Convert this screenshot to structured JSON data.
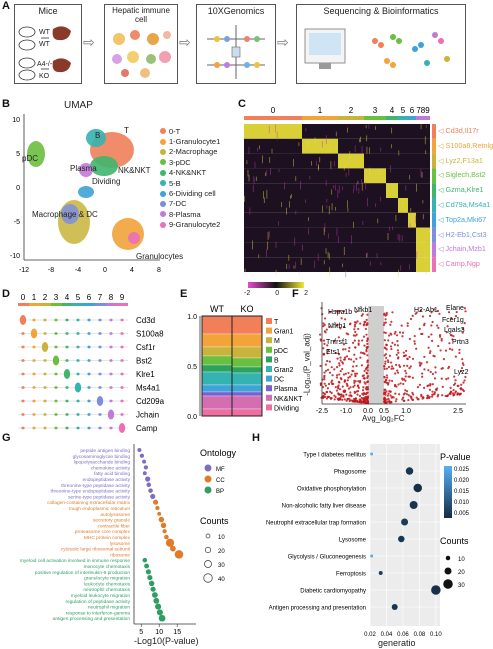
{
  "panels": {
    "A": "A",
    "B": "B",
    "C": "C",
    "D": "D",
    "E": "E",
    "F": "F",
    "G": "G",
    "H": "H"
  },
  "workflow": {
    "steps": [
      {
        "title": "Mice",
        "labels": [
          "WT",
          "WT",
          "A4-/-",
          "KO"
        ]
      },
      {
        "title": "Hepatic immune cell"
      },
      {
        "title": "10XGenomics"
      },
      {
        "title": "Sequencing & Bioinformatics"
      }
    ]
  },
  "umap": {
    "title": "UMAP",
    "cluster_labels": {
      "B": "B",
      "T": "T",
      "pDC": "pDC",
      "Plasma": "Plasma",
      "NKNKT": "NK&NKT",
      "Dividing": "Dividing",
      "MacDC": "Macrophage & DC",
      "Gran": "Granulocytes"
    },
    "x_ticks": [
      "-12",
      "-8",
      "-4",
      "0",
      "4",
      "8"
    ],
    "y_ticks": [
      "10",
      "5",
      "0",
      "-5",
      "-10"
    ],
    "legend": [
      {
        "label": "0-T",
        "color": "#f07f5a"
      },
      {
        "label": "1-Granulocyte1",
        "color": "#f2a33a"
      },
      {
        "label": "2-Macrophage",
        "color": "#c8b43a"
      },
      {
        "label": "3-pDC",
        "color": "#6bbf3f"
      },
      {
        "label": "4-NK&NKT",
        "color": "#3fb56e"
      },
      {
        "label": "5-B",
        "color": "#35b3b0"
      },
      {
        "label": "6-Dividing cell",
        "color": "#3ea3d8"
      },
      {
        "label": "7-DC",
        "color": "#7b8ee0"
      },
      {
        "label": "8-Plasma",
        "color": "#c17ad9"
      },
      {
        "label": "9-Granulocyte2",
        "color": "#ec6fb8"
      }
    ]
  },
  "heatmap": {
    "clusters": [
      "0",
      "1",
      "2",
      "3",
      "4",
      "5",
      "6",
      "789"
    ],
    "cluster_colors": [
      "#f07f5a",
      "#f2a33a",
      "#c8b43a",
      "#6bbf3f",
      "#3fb56e",
      "#35b3b0",
      "#3ea3d8",
      "#c17ad9"
    ],
    "genes": [
      {
        "label": "Cd3d,Il17r",
        "color": "#f07f5a"
      },
      {
        "label": "S100a8,Retnlg",
        "color": "#f2a33a"
      },
      {
        "label": "Lyz2,F13a1",
        "color": "#c8b43a"
      },
      {
        "label": "Siglech,Bst2",
        "color": "#6bbf3f"
      },
      {
        "label": "Gzma,Klre1",
        "color": "#3fb56e"
      },
      {
        "label": "Cd79a,Ms4a1",
        "color": "#35b3b0"
      },
      {
        "label": "Top2a,Mki67",
        "color": "#3ea3d8"
      },
      {
        "label": "H2-Eb1,Cst3",
        "color": "#7b8ee0"
      },
      {
        "label": "Jchain,Mzb1",
        "color": "#c17ad9"
      },
      {
        "label": "Camp,Ngp",
        "color": "#ec6fb8"
      }
    ],
    "scale": [
      "-2",
      "0",
      "2"
    ]
  },
  "violin": {
    "clusters": [
      "0",
      "1",
      "2",
      "3",
      "4",
      "5",
      "6",
      "7",
      "8",
      "9"
    ],
    "genes": [
      "Cd3d",
      "S100a8",
      "Csf1r",
      "Bst2",
      "Klre1",
      "Ms4a1",
      "Cd209a",
      "Jchain",
      "Camp"
    ]
  },
  "chart_data": [
    {
      "type": "bar",
      "panel": "E",
      "categories": [
        "WT",
        "KO"
      ],
      "y_ticks": [
        "1.0",
        "0.5",
        "0.0"
      ],
      "ylim": [
        0,
        1
      ],
      "series": [
        {
          "name": "T",
          "color": "#f07f5a",
          "values": [
            0.18,
            0.18
          ]
        },
        {
          "name": "Gran1",
          "color": "#f2a33a",
          "values": [
            0.13,
            0.13
          ]
        },
        {
          "name": "M",
          "color": "#c8b43a",
          "values": [
            0.09,
            0.11
          ]
        },
        {
          "name": "pDC",
          "color": "#6bbf3f",
          "values": [
            0.09,
            0.09
          ]
        },
        {
          "name": "B",
          "color": "#2ca25f",
          "values": [
            0.07,
            0.06
          ]
        },
        {
          "name": "Gran2",
          "color": "#35b3b0",
          "values": [
            0.13,
            0.12
          ]
        },
        {
          "name": "DC",
          "color": "#3ea3d8",
          "values": [
            0.07,
            0.07
          ]
        },
        {
          "name": "Plasma",
          "color": "#7b5fd0",
          "values": [
            0.04,
            0.04
          ]
        },
        {
          "name": "NK&NKT",
          "color": "#d36fb0",
          "values": [
            0.13,
            0.13
          ]
        },
        {
          "name": "Dividing",
          "color": "#ec6fa0",
          "values": [
            0.07,
            0.07
          ]
        }
      ]
    },
    {
      "type": "scatter",
      "panel": "F",
      "xlabel": "Avg_log₂FC",
      "ylabel": "-Log₁₀(P_val_adj)",
      "x_ticks": [
        "-2.5",
        "-1.0",
        "0.0",
        "0.5",
        "1.0",
        "2.5"
      ],
      "labels": [
        "Hspa1b",
        "Nfkb1",
        "H2-Ab1",
        "Elane",
        "Fcer1g",
        "Lgals3",
        "Prtn3",
        "Lyz2",
        "Nfkb1",
        "Tnfrsf1",
        "Ets1"
      ]
    },
    {
      "type": "scatter",
      "panel": "G",
      "xlabel": "-Log10(P-value)",
      "x_ticks": [
        "5",
        "10",
        "15"
      ],
      "ontology_title": "Ontology",
      "ontology": [
        {
          "name": "MF",
          "color": "#7b6fc4"
        },
        {
          "name": "CC",
          "color": "#e07b2a"
        },
        {
          "name": "BP",
          "color": "#2e9e63"
        }
      ],
      "counts_title": "Counts",
      "counts": [
        "10",
        "20",
        "30",
        "40"
      ],
      "terms": [
        {
          "label": "peptide antigen binding",
          "x": 4.5,
          "count": 10,
          "ont": "MF"
        },
        {
          "label": "glycosaminoglycan binding",
          "x": 5.2,
          "count": 12,
          "ont": "MF"
        },
        {
          "label": "lipopolysaccharide binding",
          "x": 5.8,
          "count": 10,
          "ont": "MF"
        },
        {
          "label": "chemokine activity",
          "x": 6.3,
          "count": 12,
          "ont": "MF"
        },
        {
          "label": "fatty acid binding",
          "x": 6.0,
          "count": 10,
          "ont": "MF"
        },
        {
          "label": "endopeptidase activity",
          "x": 6.8,
          "count": 18,
          "ont": "MF"
        },
        {
          "label": "threonine-type peptidase activity",
          "x": 7.1,
          "count": 14,
          "ont": "MF"
        },
        {
          "label": "threonine-type endopeptidase activity",
          "x": 7.6,
          "count": 14,
          "ont": "MF"
        },
        {
          "label": "serine-type peptidase activity",
          "x": 8.2,
          "count": 18,
          "ont": "MF"
        },
        {
          "label": "collagen-containing extracellular matrix",
          "x": 9.0,
          "count": 18,
          "ont": "CC"
        },
        {
          "label": "rough endoplasmic reticulum",
          "x": 9.5,
          "count": 12,
          "ont": "CC"
        },
        {
          "label": "autolysosome",
          "x": 10.0,
          "count": 10,
          "ont": "CC"
        },
        {
          "label": "secretory granule",
          "x": 10.6,
          "count": 20,
          "ont": "CC"
        },
        {
          "label": "contractile fiber",
          "x": 11.2,
          "count": 20,
          "ont": "CC"
        },
        {
          "label": "proteasome core complex",
          "x": 11.5,
          "count": 12,
          "ont": "CC"
        },
        {
          "label": "MHC protein complex",
          "x": 12.0,
          "count": 14,
          "ont": "CC"
        },
        {
          "label": "lysosome",
          "x": 13.0,
          "count": 38,
          "ont": "CC"
        },
        {
          "label": "cytosolic large ribosomal subunit",
          "x": 13.8,
          "count": 22,
          "ont": "CC"
        },
        {
          "label": "ribosome",
          "x": 15.5,
          "count": 40,
          "ont": "CC"
        },
        {
          "label": "myeloid cell activation involved in immune response",
          "x": 6.0,
          "count": 14,
          "ont": "BP"
        },
        {
          "label": "monocyte chemotaxis",
          "x": 6.5,
          "count": 16,
          "ont": "BP"
        },
        {
          "label": "positive regulation of interleukin-6 production",
          "x": 7.0,
          "count": 18,
          "ont": "BP"
        },
        {
          "label": "granulocyte migration",
          "x": 7.4,
          "count": 18,
          "ont": "BP"
        },
        {
          "label": "leukocyte chemotaxis",
          "x": 7.9,
          "count": 20,
          "ont": "BP"
        },
        {
          "label": "neutrophil chemotaxis",
          "x": 8.3,
          "count": 18,
          "ont": "BP"
        },
        {
          "label": "myeloid leukocyte migration",
          "x": 8.8,
          "count": 22,
          "ont": "BP"
        },
        {
          "label": "regulation of peptidase activity",
          "x": 9.2,
          "count": 22,
          "ont": "BP"
        },
        {
          "label": "neutrophil migration",
          "x": 9.7,
          "count": 24,
          "ont": "BP"
        },
        {
          "label": "response to interferon-gamma",
          "x": 10.2,
          "count": 24,
          "ont": "BP"
        },
        {
          "label": "antigen processing and presentation",
          "x": 10.8,
          "count": 28,
          "ont": "BP"
        }
      ]
    },
    {
      "type": "scatter",
      "panel": "H",
      "xlabel": "generatio",
      "x_ticks": [
        "0.02",
        "0.04",
        "0.06",
        "0.08",
        "0.10"
      ],
      "xlim": [
        0.02,
        0.105
      ],
      "pvalue_title": "P-value",
      "pvalue_ticks": [
        "0.025",
        "0.020",
        "0.015",
        "0.010",
        "0.005"
      ],
      "counts_title": "Counts",
      "counts": [
        "10",
        "20",
        "30"
      ],
      "pathways": [
        {
          "label": "Type I diabetes mellitus",
          "x": 0.022,
          "count": 4,
          "p": 0.025
        },
        {
          "label": "Phagosome",
          "x": 0.068,
          "count": 22,
          "p": 0.002
        },
        {
          "label": "Oxidative phosphorylation",
          "x": 0.078,
          "count": 26,
          "p": 0.001
        },
        {
          "label": "Non-alcoholic fatty liver disease",
          "x": 0.073,
          "count": 24,
          "p": 0.002
        },
        {
          "label": "Neutrophil extracellular trap formation",
          "x": 0.062,
          "count": 20,
          "p": 0.003
        },
        {
          "label": "Lysosome",
          "x": 0.058,
          "count": 18,
          "p": 0.002
        },
        {
          "label": "Glycolysis / Gluconeogenesis",
          "x": 0.022,
          "count": 4,
          "p": 0.024
        },
        {
          "label": "Ferroptosis",
          "x": 0.033,
          "count": 8,
          "p": 0.004
        },
        {
          "label": "Diabetic cardiomyopathy",
          "x": 0.1,
          "count": 30,
          "p": 0.001
        },
        {
          "label": "Antigen processing and presentation",
          "x": 0.05,
          "count": 16,
          "p": 0.002
        }
      ]
    }
  ]
}
